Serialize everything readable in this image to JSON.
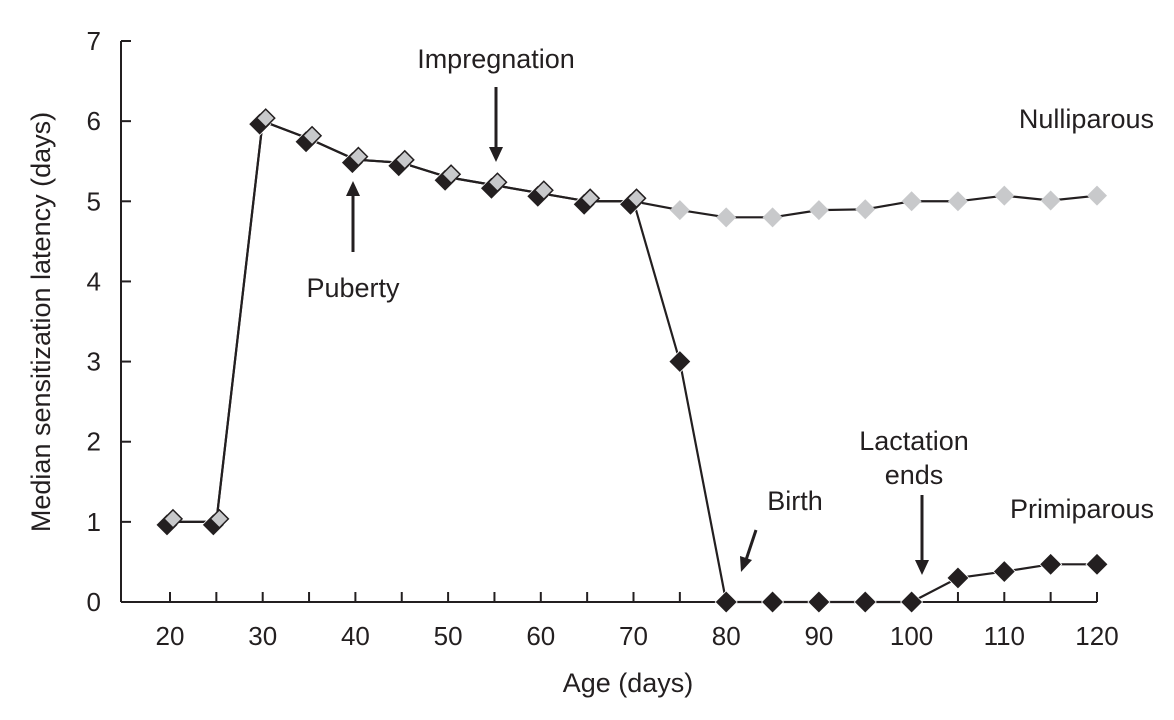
{
  "chart_data": {
    "type": "line",
    "title": "",
    "xlabel": "Age (days)",
    "ylabel": "Median sensitization latency (days)",
    "xlim": [
      20,
      120
    ],
    "ylim": [
      0,
      7
    ],
    "xticks": [
      20,
      30,
      40,
      50,
      60,
      70,
      80,
      90,
      100,
      110,
      120
    ],
    "yticks": [
      0,
      1,
      2,
      3,
      4,
      5,
      6,
      7
    ],
    "grid": false,
    "series": [
      {
        "name": "Nulliparous",
        "color": "#c8c9cb",
        "x": [
          20,
          25,
          30,
          35,
          40,
          45,
          50,
          55,
          60,
          65,
          70,
          75,
          80,
          85,
          90,
          95,
          100,
          105,
          110,
          115,
          120
        ],
        "values": [
          1.0,
          1.0,
          6.0,
          5.78,
          5.52,
          5.48,
          5.3,
          5.2,
          5.1,
          5.0,
          5.0,
          4.89,
          4.8,
          4.8,
          4.89,
          4.9,
          5.0,
          5.0,
          5.07,
          5.01,
          5.07
        ]
      },
      {
        "name": "Primiparous",
        "color": "#231f20",
        "x": [
          20,
          25,
          30,
          35,
          40,
          45,
          50,
          55,
          60,
          65,
          70,
          75,
          80,
          85,
          90,
          95,
          100,
          105,
          110,
          115,
          120
        ],
        "values": [
          1.0,
          1.0,
          6.0,
          5.78,
          5.52,
          5.48,
          5.3,
          5.2,
          5.1,
          5.0,
          5.0,
          3.0,
          0.0,
          0.0,
          0.0,
          0.0,
          0.0,
          0.3,
          0.38,
          0.47,
          0.47
        ]
      }
    ],
    "annotations": [
      {
        "text": "Impregnation",
        "x": 55,
        "arrow": "down"
      },
      {
        "text": "Puberty",
        "x": 40,
        "arrow": "up"
      },
      {
        "text": "Birth",
        "x": 80,
        "arrow": "down-left"
      },
      {
        "text": "Lactation ends",
        "x": 101,
        "arrow": "down"
      }
    ],
    "legend_labels": {
      "nulliparous": "Nulliparous",
      "primiparous": "Primiparous"
    }
  }
}
